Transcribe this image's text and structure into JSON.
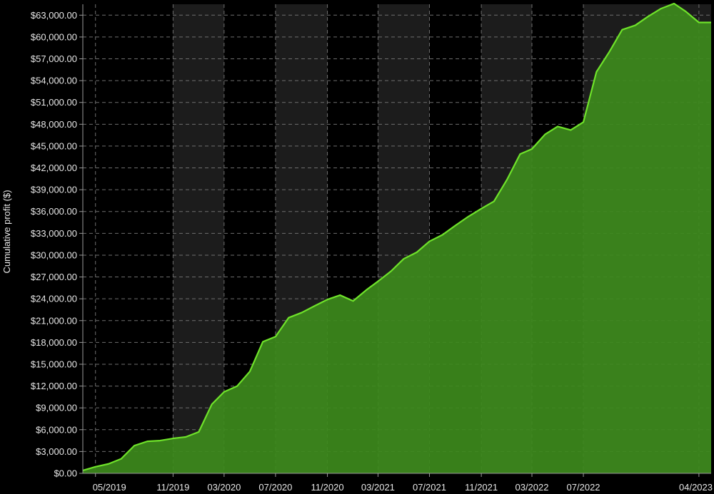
{
  "chart_data": {
    "type": "area",
    "title": "",
    "xlabel": "",
    "ylabel": "Cumulative profit ($)",
    "ylim": [
      0,
      64500
    ],
    "xlim": [
      "2019-04-01",
      "2023-04-30"
    ],
    "grid": true,
    "y_ticks": [
      0,
      3000,
      6000,
      9000,
      12000,
      15000,
      18000,
      21000,
      24000,
      27000,
      30000,
      33000,
      36000,
      39000,
      42000,
      45000,
      48000,
      51000,
      54000,
      57000,
      60000,
      63000
    ],
    "y_tick_labels": [
      "$0.00",
      "$3,000.00",
      "$6,000.00",
      "$9,000.00",
      "$12,000.00",
      "$15,000.00",
      "$18,000.00",
      "$21,000.00",
      "$24,000.00",
      "$27,000.00",
      "$30,000.00",
      "$33,000.00",
      "$36,000.00",
      "$39,000.00",
      "$42,000.00",
      "$45,000.00",
      "$48,000.00",
      "$51,000.00",
      "$54,000.00",
      "$57,000.00",
      "$60,000.00",
      "$63,000.00"
    ],
    "x_ticks": [
      "2019-05-01",
      "2019-11-01",
      "2020-03-01",
      "2020-07-01",
      "2020-11-01",
      "2021-03-01",
      "2021-07-01",
      "2021-11-01",
      "2022-03-01",
      "2022-07-01",
      "2023-04-01"
    ],
    "x_tick_labels": [
      "05/2019",
      "11/2019",
      "03/2020",
      "07/2020",
      "11/2020",
      "03/2021",
      "07/2021",
      "11/2021",
      "03/2022",
      "07/2022",
      "04/2023"
    ],
    "shaded_bands": [
      [
        "2019-11-01",
        "2020-03-01"
      ],
      [
        "2020-07-01",
        "2020-11-01"
      ],
      [
        "2021-03-01",
        "2021-07-01"
      ],
      [
        "2021-11-01",
        "2022-03-01"
      ],
      [
        "2022-07-01",
        "2023-04-30"
      ]
    ],
    "series": [
      {
        "x": [
          "2019-04-01",
          "2019-05-01",
          "2019-06-01",
          "2019-07-01",
          "2019-08-01",
          "2019-09-01",
          "2019-10-01",
          "2019-11-01",
          "2019-12-01",
          "2020-01-01",
          "2020-02-01",
          "2020-03-01",
          "2020-04-01",
          "2020-05-01",
          "2020-06-01",
          "2020-07-01",
          "2020-08-01",
          "2020-09-01",
          "2020-10-01",
          "2020-11-01",
          "2020-12-01",
          "2021-01-01",
          "2021-02-01",
          "2021-03-01",
          "2021-04-01",
          "2021-05-01",
          "2021-06-01",
          "2021-07-01",
          "2021-08-01",
          "2021-09-01",
          "2021-10-01",
          "2021-11-01",
          "2021-12-01",
          "2022-01-01",
          "2022-02-01",
          "2022-03-01",
          "2022-04-01",
          "2022-05-01",
          "2022-06-01",
          "2022-07-01",
          "2022-08-01",
          "2022-09-01",
          "2022-10-01",
          "2022-11-01",
          "2022-12-01",
          "2023-01-01",
          "2023-02-01",
          "2023-03-01",
          "2023-04-01",
          "2023-04-30"
        ],
        "values": [
          400,
          900,
          1300,
          2000,
          3800,
          4400,
          4500,
          4800,
          5000,
          5700,
          9500,
          11200,
          12000,
          14000,
          18100,
          18800,
          21400,
          22100,
          23000,
          23900,
          24500,
          23700,
          25200,
          26400,
          27800,
          29500,
          30400,
          31900,
          32800,
          34100,
          35300,
          36400,
          37400,
          40400,
          43900,
          44600,
          46600,
          47700,
          47200,
          48300,
          55200,
          58000,
          61000,
          61600,
          62800,
          63900,
          64600,
          63500,
          62000,
          62000
        ]
      }
    ]
  }
}
